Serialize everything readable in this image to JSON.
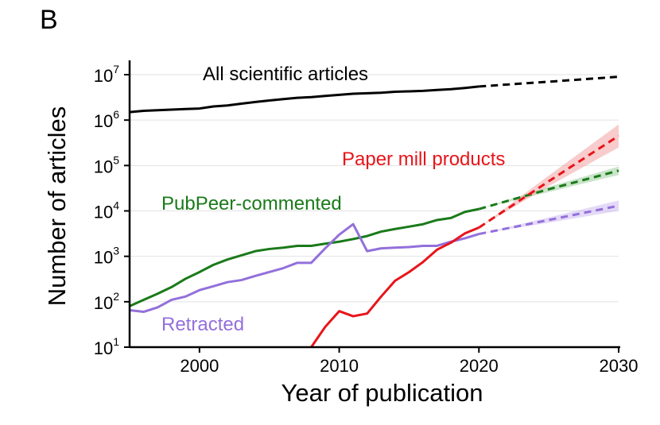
{
  "panel_label": "B",
  "chart_data": {
    "type": "line",
    "xlabel": "Year of publication",
    "ylabel": "Number of articles",
    "y_scale": "log",
    "xlim": [
      1995,
      2030
    ],
    "ylim": [
      10,
      10000000
    ],
    "x_ticks": [
      "2000",
      "2010",
      "2020",
      "2030"
    ],
    "x_tick_values": [
      2000,
      2010,
      2020,
      2030
    ],
    "y_ticks": [
      {
        "base": "10",
        "exp": "1",
        "value": 10
      },
      {
        "base": "10",
        "exp": "2",
        "value": 100
      },
      {
        "base": "10",
        "exp": "3",
        "value": 1000
      },
      {
        "base": "10",
        "exp": "4",
        "value": 10000
      },
      {
        "base": "10",
        "exp": "5",
        "value": 100000
      },
      {
        "base": "10",
        "exp": "6",
        "value": 1000000
      },
      {
        "base": "10",
        "exp": "7",
        "value": 10000000
      }
    ],
    "grid": "horizontal",
    "series": [
      {
        "name": "All scientific articles",
        "color": "#000000",
        "observed": {
          "x": [
            1995,
            1996,
            1997,
            1998,
            1999,
            2000,
            2001,
            2002,
            2003,
            2004,
            2005,
            2006,
            2007,
            2008,
            2009,
            2010,
            2011,
            2012,
            2013,
            2014,
            2015,
            2016,
            2017,
            2018,
            2019,
            2020
          ],
          "y": [
            1500000,
            1600000,
            1650000,
            1700000,
            1750000,
            1800000,
            2000000,
            2100000,
            2300000,
            2500000,
            2700000,
            2900000,
            3100000,
            3200000,
            3400000,
            3600000,
            3800000,
            3900000,
            4000000,
            4200000,
            4300000,
            4400000,
            4600000,
            4800000,
            5100000,
            5500000
          ]
        },
        "projection": {
          "x": [
            2020,
            2025,
            2030
          ],
          "y": [
            5500000,
            7000000,
            9000000
          ]
        }
      },
      {
        "name": "PubPeer-commented",
        "color": "#1a7a1a",
        "band_color": "#9fd09f",
        "observed": {
          "x": [
            1995,
            1996,
            1997,
            1998,
            1999,
            2000,
            2001,
            2002,
            2003,
            2004,
            2005,
            2006,
            2007,
            2008,
            2009,
            2010,
            2011,
            2012,
            2013,
            2014,
            2015,
            2016,
            2017,
            2018,
            2019,
            2020
          ],
          "y": [
            80,
            110,
            150,
            210,
            320,
            450,
            650,
            850,
            1050,
            1300,
            1450,
            1550,
            1700,
            1700,
            1900,
            2100,
            2400,
            2800,
            3500,
            4000,
            4500,
            5100,
            6300,
            7000,
            9500,
            11000
          ]
        },
        "projection": {
          "x": [
            2020,
            2025,
            2030
          ],
          "y": [
            11000,
            30000,
            77000
          ],
          "band_low": [
            11000,
            26000,
            62000
          ],
          "band_high": [
            11000,
            34000,
            95000
          ]
        }
      },
      {
        "name": "Retracted",
        "color": "#9370db",
        "band_color": "#cdbcf0",
        "observed": {
          "x": [
            1995,
            1996,
            1997,
            1998,
            1999,
            2000,
            2001,
            2002,
            2003,
            2004,
            2005,
            2006,
            2007,
            2008,
            2009,
            2010,
            2011,
            2012,
            2013,
            2014,
            2015,
            2016,
            2017,
            2018,
            2019,
            2020
          ],
          "y": [
            65,
            60,
            75,
            110,
            130,
            180,
            220,
            270,
            300,
            370,
            450,
            550,
            720,
            720,
            1500,
            3000,
            5100,
            1300,
            1500,
            1550,
            1600,
            1700,
            1700,
            2100,
            2500,
            3100
          ]
        },
        "projection": {
          "x": [
            2020,
            2025,
            2030
          ],
          "y": [
            3100,
            6300,
            13000
          ],
          "band_low": [
            3100,
            5500,
            10000
          ],
          "band_high": [
            3100,
            7200,
            17000
          ]
        }
      },
      {
        "name": "Paper mill products",
        "color": "#e8141a",
        "band_color": "#f3a3a3",
        "observed": {
          "x": [
            2008,
            2009,
            2010,
            2011,
            2012,
            2013,
            2014,
            2015,
            2016,
            2017,
            2018,
            2019,
            2020
          ],
          "y": [
            10,
            28,
            62,
            48,
            55,
            130,
            290,
            450,
            750,
            1400,
            2000,
            3200,
            4300
          ]
        },
        "projection": {
          "x": [
            2020,
            2025,
            2030
          ],
          "y": [
            4300,
            45000,
            450000
          ],
          "band_low": [
            4300,
            35000,
            250000
          ],
          "band_high": [
            4300,
            60000,
            800000
          ]
        }
      }
    ]
  }
}
